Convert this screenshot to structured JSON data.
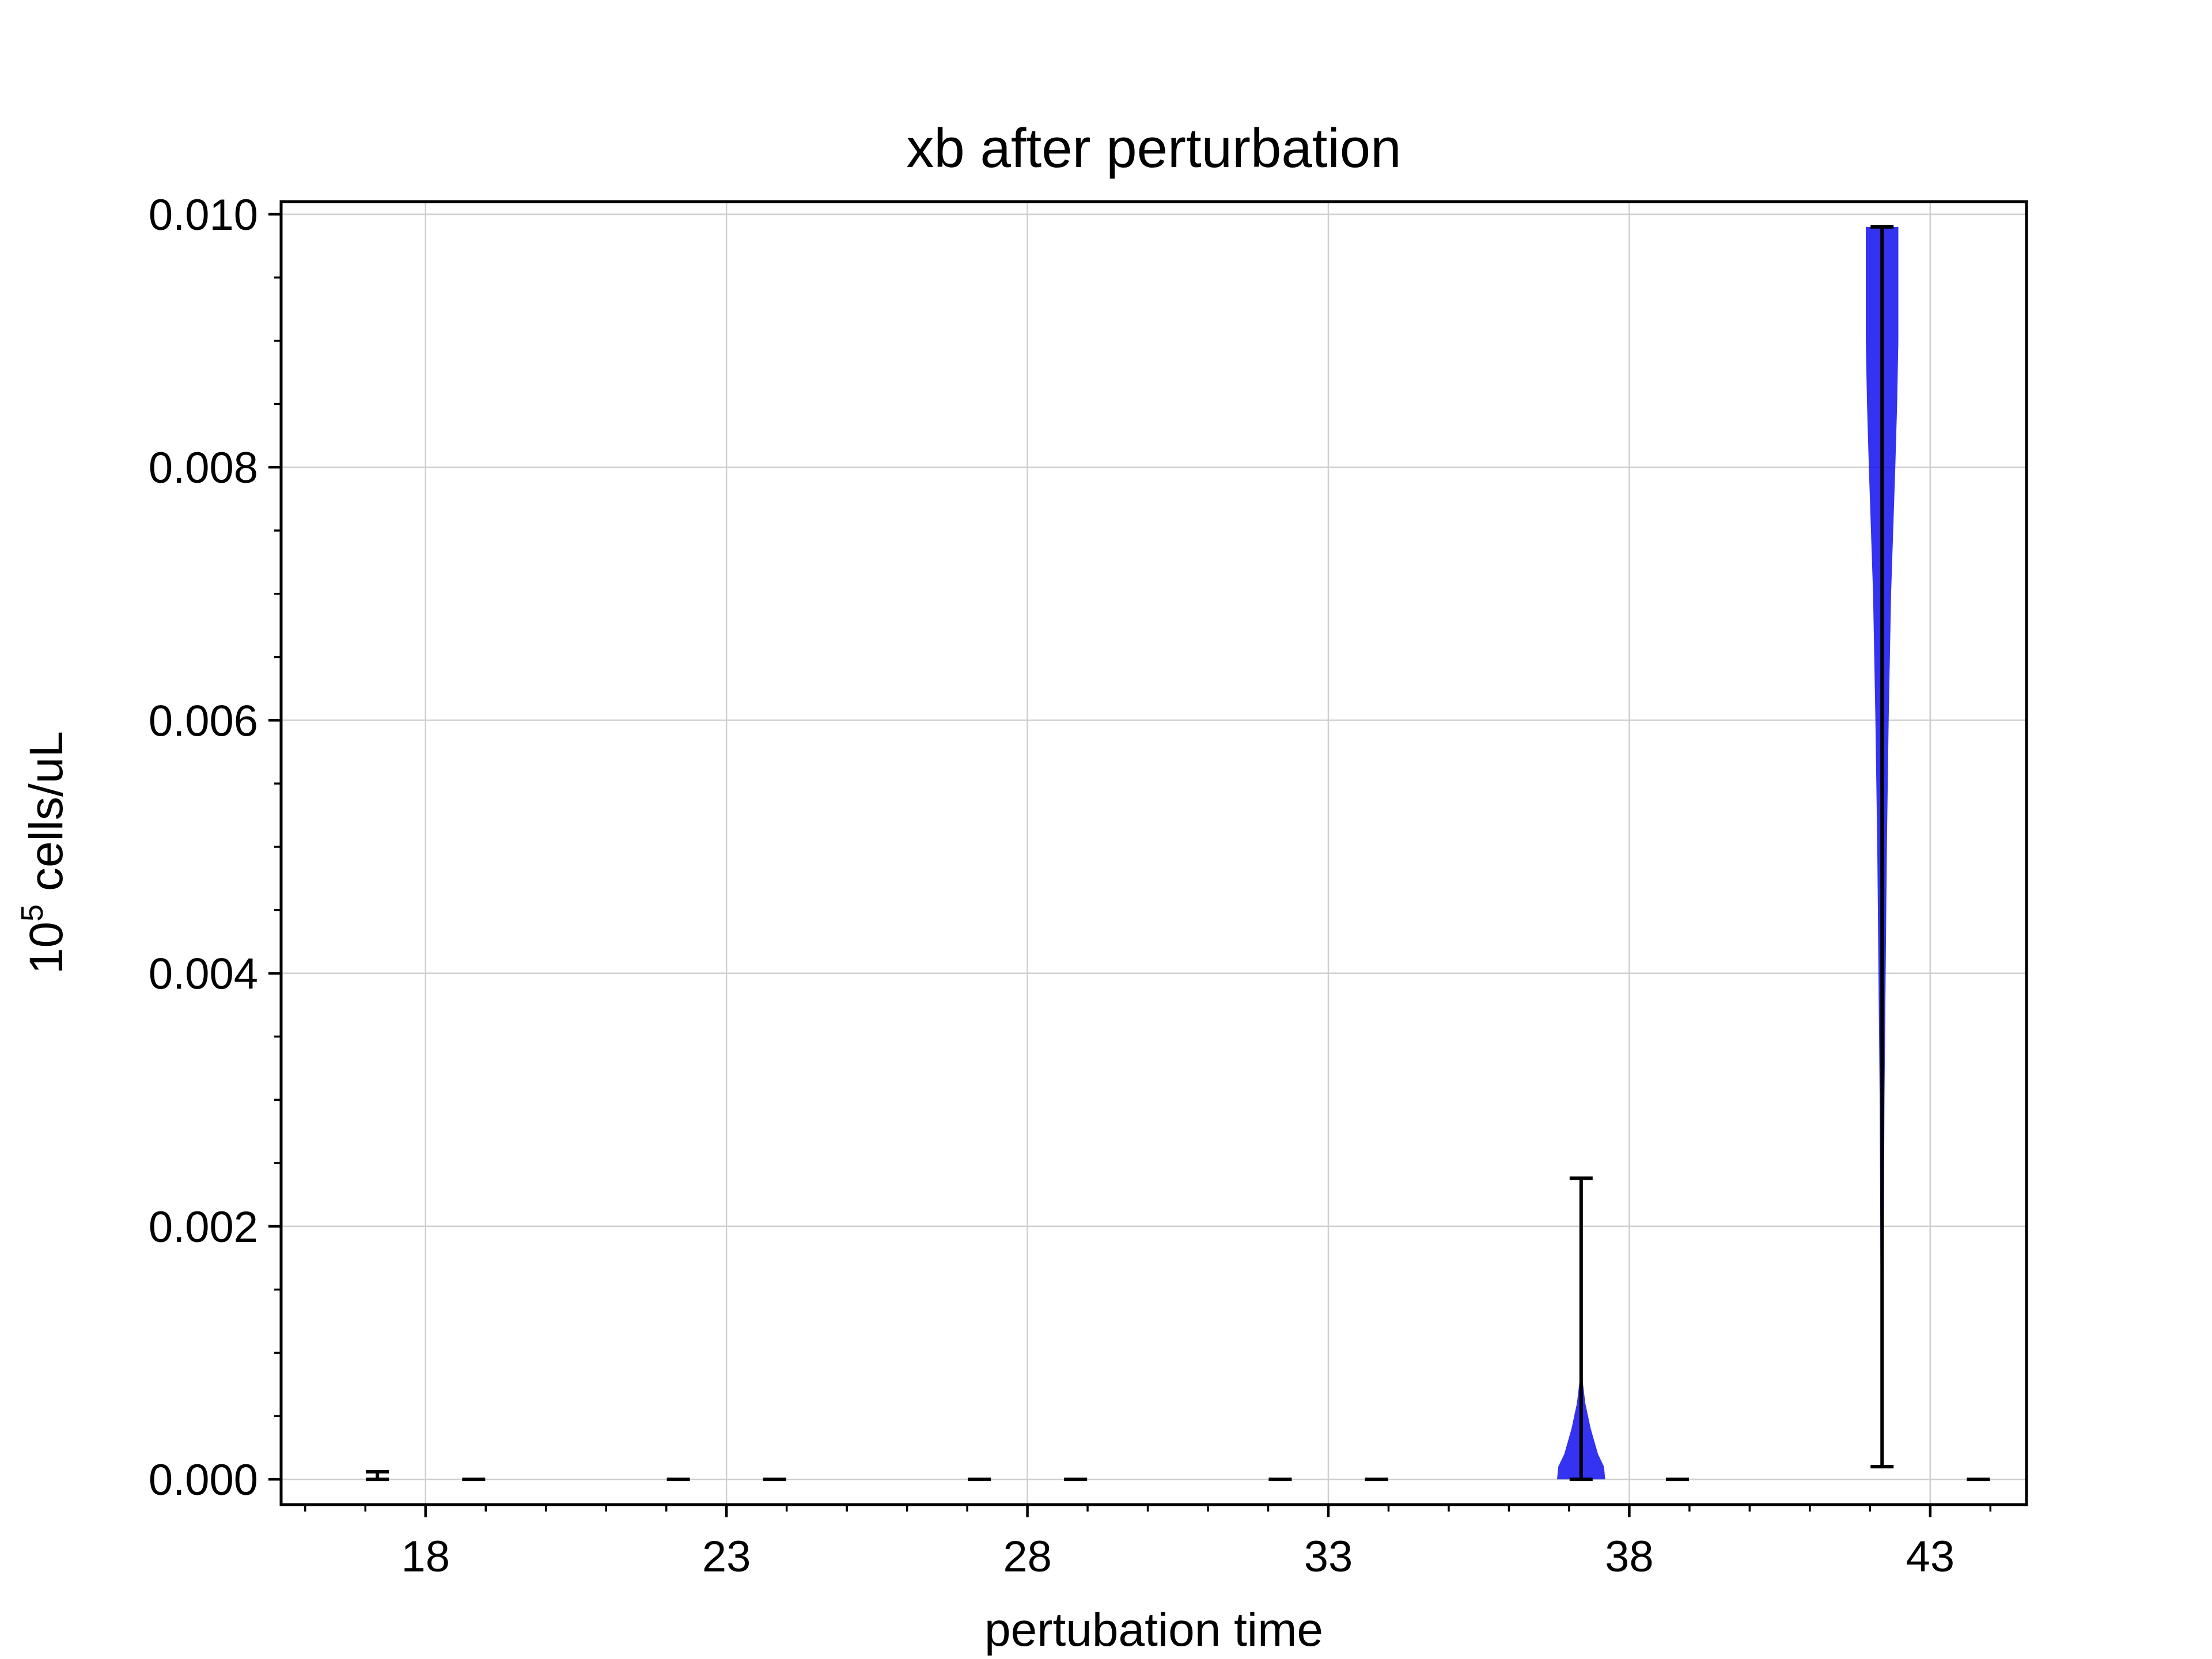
{
  "chart_data": {
    "type": "violin",
    "title": "xb after perturbation",
    "xlabel": "pertubation time",
    "ylabel_base": "10",
    "ylabel_exp": "5",
    "ylabel_rest": " cells/uL",
    "xlim": [
      15.6,
      44.6
    ],
    "ylim": [
      -0.0002,
      0.0101
    ],
    "xticks": [
      18,
      23,
      28,
      33,
      38,
      43
    ],
    "yticks": [
      0.0,
      0.002,
      0.004,
      0.006,
      0.008,
      0.01
    ],
    "ytick_labels": [
      "0.000",
      "0.002",
      "0.004",
      "0.006",
      "0.008",
      "0.010"
    ],
    "grid": true,
    "fill_color": "#0000ee",
    "violins": [
      {
        "x": 17.2,
        "min": 0.0,
        "max": 6e-05
      },
      {
        "x": 18.8,
        "min": 0.0,
        "max": 0.0
      },
      {
        "x": 22.2,
        "min": 0.0,
        "max": 0.0
      },
      {
        "x": 23.8,
        "min": 0.0,
        "max": 0.0
      },
      {
        "x": 27.2,
        "min": 0.0,
        "max": 0.0
      },
      {
        "x": 28.8,
        "min": 0.0,
        "max": 0.0
      },
      {
        "x": 32.2,
        "min": 0.0,
        "max": 0.0
      },
      {
        "x": 33.8,
        "min": 0.0,
        "max": 0.0
      },
      {
        "x": 37.2,
        "min": 0.0,
        "max": 0.00238,
        "shape": [
          [
            0.0,
            0.4
          ],
          [
            0.0001,
            0.38
          ],
          [
            0.0002,
            0.28
          ],
          [
            0.0004,
            0.16
          ],
          [
            0.0006,
            0.07
          ],
          [
            0.0008,
            0.02
          ],
          [
            0.0009,
            0.0
          ]
        ]
      },
      {
        "x": 38.8,
        "min": 0.0,
        "max": 0.0
      },
      {
        "x": 42.2,
        "min": 0.0001,
        "max": 0.0099,
        "shape": [
          [
            0.0001,
            0.0
          ],
          [
            0.001,
            0.02
          ],
          [
            0.003,
            0.04
          ],
          [
            0.005,
            0.08
          ],
          [
            0.006,
            0.11
          ],
          [
            0.007,
            0.15
          ],
          [
            0.008,
            0.22
          ],
          [
            0.0085,
            0.25
          ],
          [
            0.009,
            0.27
          ],
          [
            0.0095,
            0.27
          ],
          [
            0.0099,
            0.27
          ]
        ]
      },
      {
        "x": 43.8,
        "min": 0.0,
        "max": 0.0
      }
    ]
  }
}
